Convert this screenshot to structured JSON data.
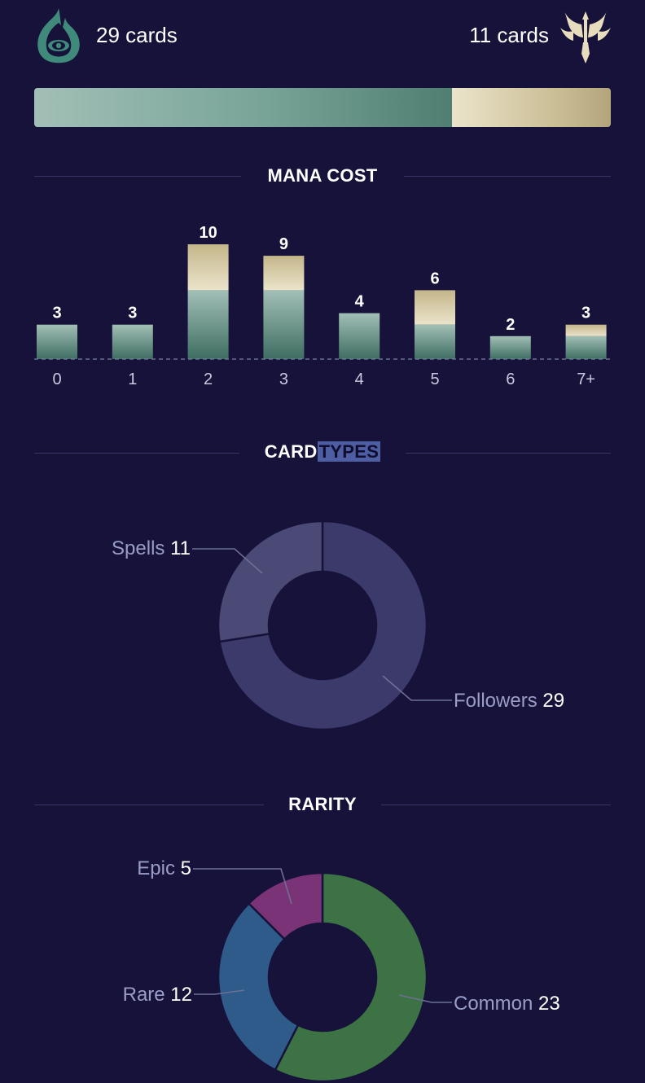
{
  "header": {
    "left_count": "29 cards",
    "right_count": "11 cards"
  },
  "split": {
    "left": 29,
    "right": 11
  },
  "sections": {
    "mana_title": "MANA COST",
    "types_title_a": "CARD",
    "types_title_b": "TYPES",
    "rarity_title": "RARITY"
  },
  "icons": {
    "left_icon": "shadow-isles-eye-flame-icon",
    "right_icon": "targon-trident-icon"
  },
  "colors": {
    "teal_top": "#a2bfb6",
    "teal_bottom": "#3f6e62",
    "gold_top": "#c4b68a",
    "gold_bottom": "#ebe4cb",
    "followers": "#3c3a6a",
    "spells": "#4b4975",
    "common": "#3c7244",
    "rare": "#2e5b8a",
    "epic": "#7a3377"
  },
  "chart_data": [
    {
      "type": "bar",
      "title": "MANA COST",
      "categories": [
        "0",
        "1",
        "2",
        "3",
        "4",
        "5",
        "6",
        "7+"
      ],
      "series": [
        {
          "values": [
            3,
            3,
            6,
            6,
            4,
            3,
            2,
            2
          ]
        },
        {
          "values": [
            0,
            0,
            4,
            3,
            0,
            3,
            0,
            1
          ]
        }
      ],
      "totals": [
        3,
        3,
        10,
        9,
        4,
        6,
        2,
        3
      ],
      "ylim": [
        0,
        10
      ],
      "grid": false
    },
    {
      "type": "pie",
      "title": "CARD TYPES",
      "slices": [
        {
          "label": "Followers",
          "value": 29
        },
        {
          "label": "Spells",
          "value": 11
        }
      ]
    },
    {
      "type": "pie",
      "title": "RARITY",
      "slices": [
        {
          "label": "Common",
          "value": 23
        },
        {
          "label": "Rare",
          "value": 12
        },
        {
          "label": "Epic",
          "value": 5
        }
      ]
    }
  ]
}
